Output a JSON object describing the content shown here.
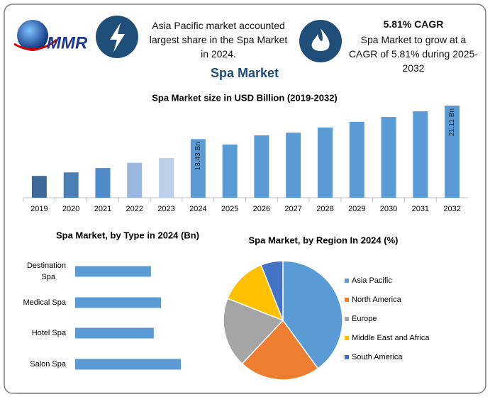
{
  "header": {
    "logo": "MMR",
    "fact1": "Asia Pacific market accounted largest share in the Spa Market in 2024.",
    "cagr_title": "5.81% CAGR",
    "fact2": "Spa Market to grow at a CAGR of 5.81% during 2025-2032"
  },
  "title": "Spa Market",
  "chart_data": [
    {
      "type": "bar",
      "title": "Spa Market size in USD Billion (2019-2032)",
      "categories": [
        "2019",
        "2020",
        "2021",
        "2022",
        "2023",
        "2024",
        "2025",
        "2026",
        "2027",
        "2028",
        "2029",
        "2030",
        "2031",
        "2032"
      ],
      "values": [
        5.0,
        5.8,
        6.8,
        8.0,
        9.1,
        13.43,
        12.2,
        14.3,
        14.9,
        16.1,
        17.4,
        18.5,
        19.8,
        21.11
      ],
      "value_labels": [
        null,
        null,
        null,
        null,
        null,
        "13.43 Bn",
        null,
        null,
        null,
        null,
        null,
        null,
        null,
        "21.11 Bn"
      ],
      "colors": [
        "#3e6a98",
        "#4a7fb5",
        "#4f8ac9",
        "#98b8e0",
        "#bcd0ec",
        "#5b9bd5",
        "#5b9bd5",
        "#5b9bd5",
        "#5b9bd5",
        "#5b9bd5",
        "#5b9bd5",
        "#5b9bd5",
        "#5b9bd5",
        "#5b9bd5"
      ]
    },
    {
      "type": "hbar",
      "title": "Spa Market, by Type in 2024 (Bn)",
      "categories": [
        "Destination Spa",
        "Medical Spa",
        "Hotel Spa",
        "Salon Spa"
      ],
      "values": [
        2.94,
        3.33,
        3.05,
        4.1
      ],
      "color": "#5b9bd5"
    },
    {
      "type": "pie",
      "title": "Spa Market, by Region In 2024 (%)",
      "categories": [
        "Asia Pacific",
        "North America",
        "Europe",
        "Middle East and Africa",
        "South America"
      ],
      "values": [
        40,
        22,
        19,
        13,
        6
      ],
      "colors": [
        "#5b9bd5",
        "#ed7d31",
        "#a5a5a5",
        "#ffc000",
        "#4472c4"
      ]
    }
  ]
}
